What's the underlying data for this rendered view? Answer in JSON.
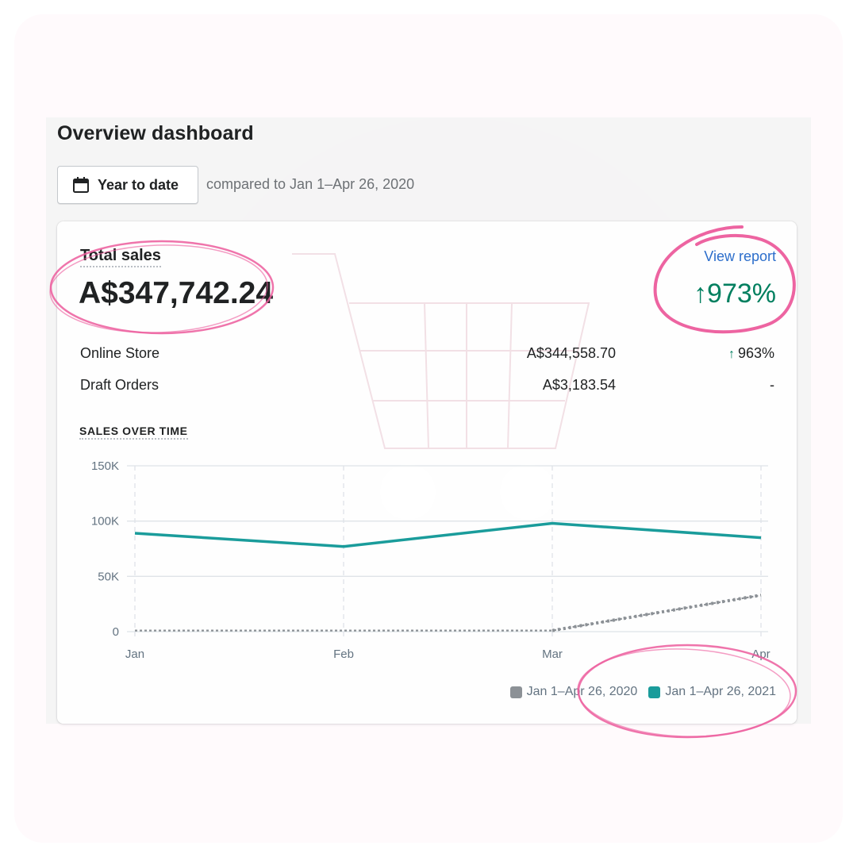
{
  "dashboard": {
    "title": "Overview dashboard",
    "date_button": {
      "label": "Year to date",
      "icon": "calendar-icon"
    },
    "compare_text": "compared to Jan 1–Apr 26, 2020"
  },
  "total_sales": {
    "label": "Total sales",
    "value": "A$347,742.24",
    "view_report": "View report",
    "change": "973%",
    "change_arrow": "↑",
    "change_color": "#007f5f"
  },
  "channels": [
    {
      "name": "Online Store",
      "amount": "A$344,558.70",
      "change": "963%",
      "arrow": "↑"
    },
    {
      "name": "Draft Orders",
      "amount": "A$3,183.54",
      "change": "-",
      "arrow": ""
    }
  ],
  "sales_over_time": {
    "title": "SALES OVER TIME",
    "y_ticks": [
      "150K",
      "100K",
      "50K",
      "0"
    ],
    "x_ticks": [
      "Jan",
      "Feb",
      "Mar",
      "Apr"
    ]
  },
  "chart_data": {
    "type": "line",
    "title": "SALES OVER TIME",
    "categories": [
      "Jan",
      "Feb",
      "Mar",
      "Apr"
    ],
    "ylim": [
      0,
      150000
    ],
    "grid": true,
    "legend_position": "bottom-right",
    "series": [
      {
        "name": "Jan 1–Apr 26, 2020",
        "values": [
          1000,
          1000,
          1000,
          33000
        ],
        "color": "#8c9196",
        "style": "dotted"
      },
      {
        "name": "Jan 1–Apr 26, 2021",
        "values": [
          89000,
          77000,
          98000,
          85000
        ],
        "color": "#1a9c9b",
        "style": "solid"
      }
    ]
  },
  "colors": {
    "accent_pink": "#e83e8c",
    "link_blue": "#2c6ecb",
    "positive_green": "#007f5f"
  }
}
